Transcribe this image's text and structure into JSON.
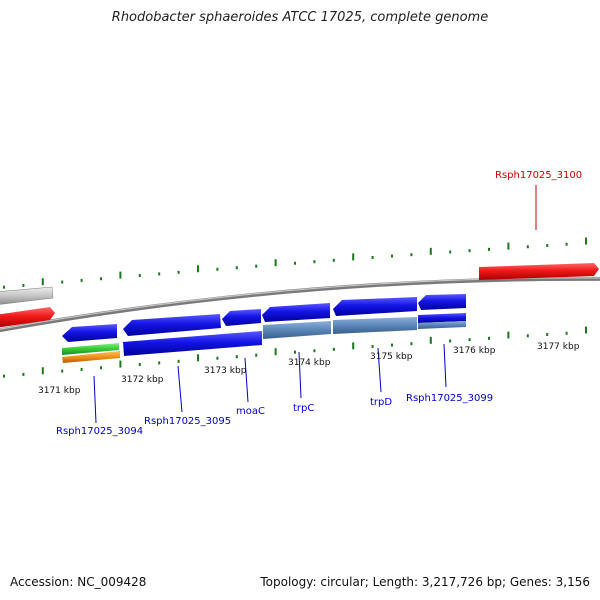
{
  "title": "Rhodobacter sphaeroides ATCC 17025, complete genome",
  "footer": {
    "accession": "Accession: NC_009428",
    "summary": "Topology: circular; Length: 3,217,726 bp; Genes: 3,156"
  },
  "kbp_labels": [
    "3171 kbp",
    "3172 kbp",
    "3173 kbp",
    "3174 kbp",
    "3175 kbp",
    "3176 kbp",
    "3177 kbp"
  ],
  "gene_labels": [
    {
      "name": "Rsph17025_3094",
      "color": "#0000cc"
    },
    {
      "name": "Rsph17025_3095",
      "color": "#0000cc"
    },
    {
      "name": "moaC",
      "color": "#0000cc"
    },
    {
      "name": "trpC",
      "color": "#0000cc"
    },
    {
      "name": "trpD",
      "color": "#0000cc"
    },
    {
      "name": "Rsph17025_3099",
      "color": "#0000cc"
    },
    {
      "name": "Rsph17025_3100",
      "color": "#cc0000"
    }
  ],
  "colors": {
    "gene_blue": "#1010e0",
    "gene_steel": "#5a86b8",
    "gene_red": "#ee1111",
    "gene_green": "#33cc33",
    "gene_orange": "#f09018",
    "gene_gray": "#bbbbbb",
    "tick": "#1a7a1a",
    "backbone": "#888888"
  }
}
